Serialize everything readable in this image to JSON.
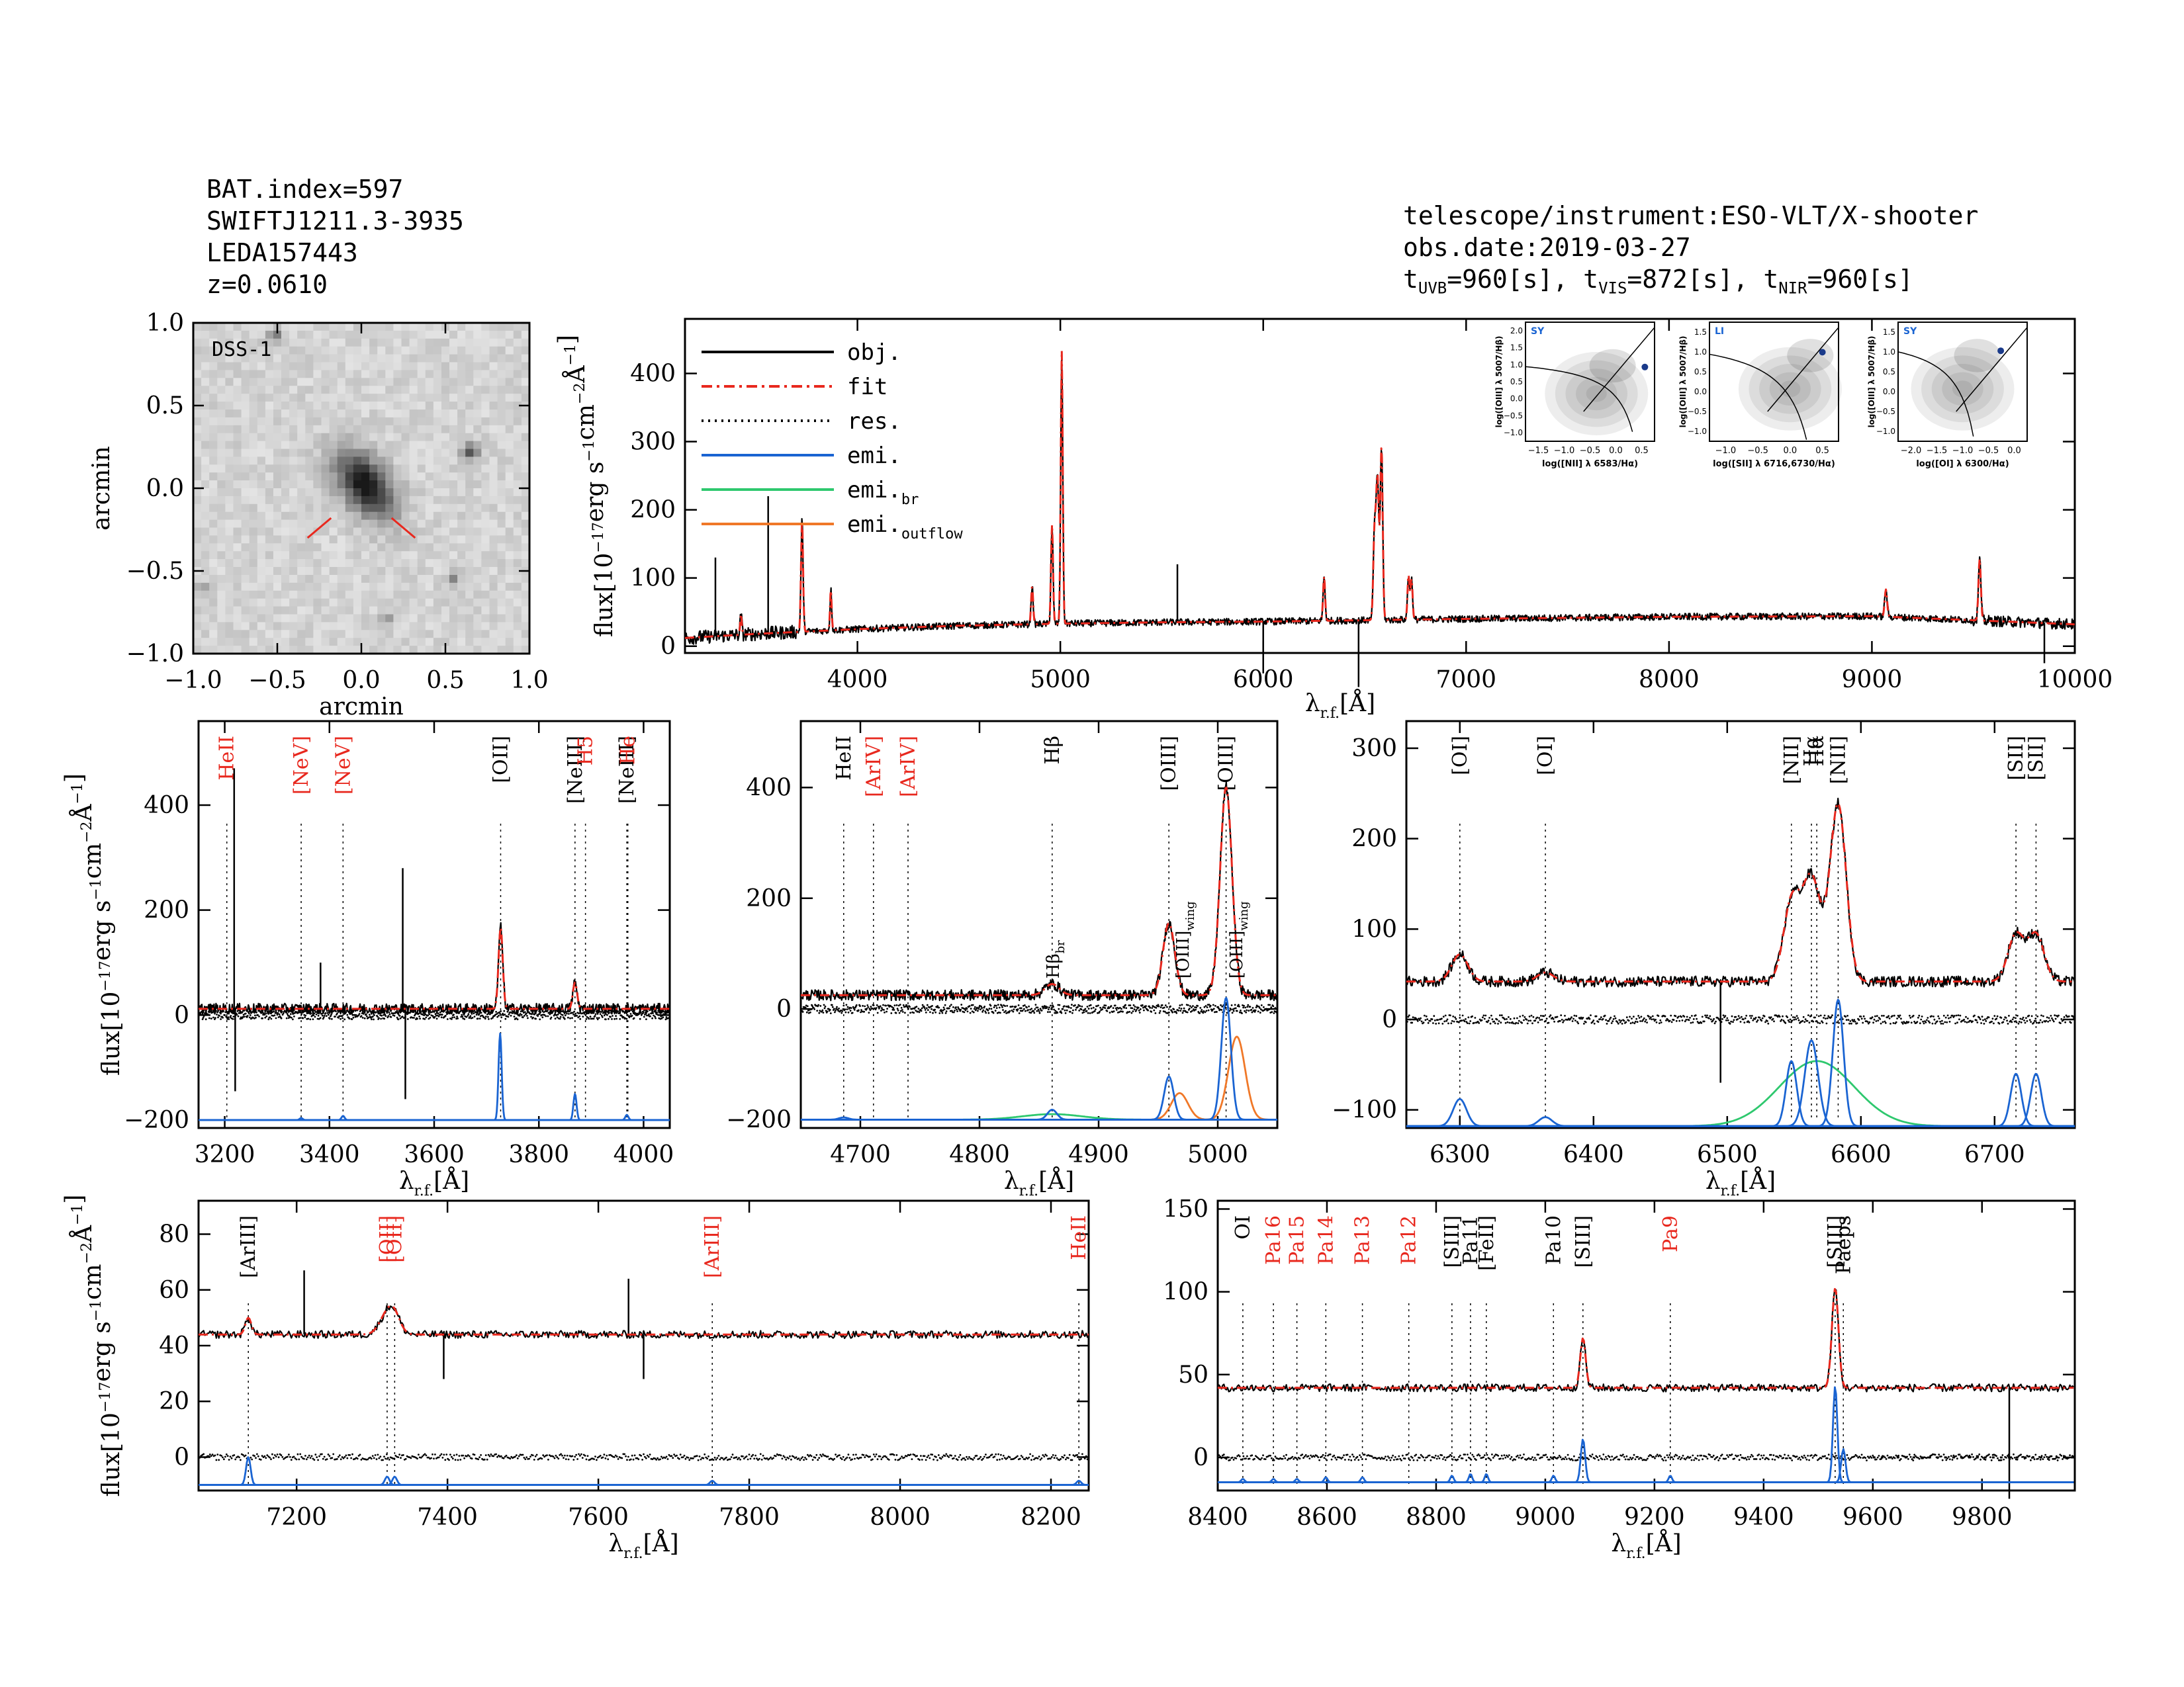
{
  "header": {
    "left": [
      "BAT.index=597",
      "SWIFTJ1211.3-3935",
      "LEDA157443",
      "z=0.0610"
    ],
    "right_telescope": "telescope/instrument:ESO-VLT/X-shooter",
    "right_date": "obs.date:2019-03-27",
    "exposure": {
      "t": "t",
      "uvb_sub": "UVB",
      "uvb_val": "=960[s],",
      "vis_sub": "VIS",
      "vis_val": "=872[s],",
      "nir_sub": "NIR",
      "nir_val": "=960[s]"
    }
  },
  "colors": {
    "obj": "#000000",
    "fit": "#e8281e",
    "res": "#000000",
    "emi": "#1a64d2",
    "emi_br": "#2ec86e",
    "emi_outflow": "#f07828",
    "label_red": "#e8281e"
  },
  "image_panel": {
    "label": "DSS-1",
    "xlabel": "arcmin",
    "ylabel": "arcmin",
    "xticks": [
      "−1.0",
      "−0.5",
      "0.0",
      "0.5",
      "1.0"
    ],
    "yticks": [
      "1.0",
      "0.5",
      "0.0",
      "−0.5",
      "−1.0"
    ]
  },
  "axis_text": {
    "flux_label": "flux[10",
    "flux_exp": "−17",
    "flux_rest": "erg s",
    "flux_exp2": "−1",
    "flux_rest2": "cm",
    "flux_exp3": "−2",
    "flux_rest3": "Å",
    "flux_exp4": "−1",
    "flux_close": "]",
    "lambda": "λ",
    "lambda_sub": "r.f.",
    "lambda_unit": "[Å]",
    "lambda_top": "λ",
    "lambda_top_unit": "[Å]"
  },
  "legend": [
    {
      "label": "obj.",
      "sub": ""
    },
    {
      "label": "fit",
      "sub": ""
    },
    {
      "label": "res.",
      "sub": ""
    },
    {
      "label": "emi.",
      "sub": ""
    },
    {
      "label": "emi.",
      "sub": "br"
    },
    {
      "label": "emi.",
      "sub": "outflow"
    }
  ],
  "bpt": [
    {
      "tag": "SY",
      "xlabel": "log([NII] λ 6583/Hα)",
      "ylabel": "log([OIII] λ 5007/Hβ)",
      "xticks": [
        "−1.5",
        "−1.0",
        "−0.5",
        "0.0",
        "0.5"
      ],
      "xlim": [
        -1.5,
        0.5
      ],
      "ylim": [
        -1.0,
        2.0
      ],
      "yticks": [
        "2.0",
        "1.5",
        "1.0",
        "0.5",
        "0.0",
        "−0.5",
        "−1.0"
      ],
      "point": [
        0.35,
        0.87
      ]
    },
    {
      "tag": "LI",
      "xlabel": "log([SII] λ 6716,6730/Hα)",
      "ylabel": "log([OIII] λ 5007/Hβ)",
      "xticks": [
        "−1.0",
        "−0.5",
        "0.0",
        "0.5"
      ],
      "xlim": [
        -1.2,
        0.4
      ],
      "ylim": [
        -1.0,
        1.5
      ],
      "yticks": [
        "1.5",
        "1.0",
        "0.5",
        "0.0",
        "−0.5",
        "−1.0"
      ],
      "point": [
        0.2,
        0.87
      ]
    },
    {
      "tag": "SY",
      "xlabel": "log([OI] λ 6300/Hα)",
      "ylabel": "log([OIII] λ 5007/Hβ)",
      "xticks": [
        "−2.0",
        "−1.5",
        "−1.0",
        "−0.5",
        "0.0"
      ],
      "xlim": [
        -2.2,
        0.0
      ],
      "ylim": [
        -1.0,
        1.5
      ],
      "yticks": [
        "1.5",
        "1.0",
        "0.5",
        "0.0",
        "−0.5",
        "−1.0"
      ],
      "point": [
        -0.45,
        0.9
      ]
    }
  ],
  "chart_data": [
    {
      "id": "overview",
      "type": "line",
      "xlim": [
        3150,
        10000
      ],
      "ylim": [
        -10,
        480
      ],
      "xticks": [
        4000,
        5000,
        6000,
        7000,
        8000,
        9000,
        10000
      ],
      "yticks": [
        0,
        100,
        200,
        300,
        400
      ],
      "continuum": [
        [
          3150,
          12
        ],
        [
          3500,
          18
        ],
        [
          4000,
          25
        ],
        [
          4500,
          30
        ],
        [
          5000,
          33
        ],
        [
          5500,
          35
        ],
        [
          6000,
          36
        ],
        [
          6500,
          38
        ],
        [
          7000,
          40
        ],
        [
          8000,
          43
        ],
        [
          9000,
          44
        ],
        [
          10000,
          32
        ]
      ],
      "lines": [
        [
          3426,
          30,
          4
        ],
        [
          3727,
          165,
          5
        ],
        [
          3869,
          60,
          4
        ],
        [
          4861,
          55,
          5
        ],
        [
          4959,
          145,
          5
        ],
        [
          5007,
          400,
          5
        ],
        [
          6300,
          65,
          5
        ],
        [
          6548,
          120,
          6
        ],
        [
          6563,
          210,
          7
        ],
        [
          6583,
          250,
          6
        ],
        [
          6716,
          65,
          5
        ],
        [
          6731,
          60,
          5
        ],
        [
          9069,
          40,
          6
        ],
        [
          9531,
          90,
          6
        ]
      ],
      "spikes": [
        [
          3300,
          130
        ],
        [
          3560,
          220
        ],
        [
          5577,
          120
        ],
        [
          6000,
          -40
        ],
        [
          6470,
          -60
        ],
        [
          9850,
          -25
        ]
      ]
    },
    {
      "id": "zoom1",
      "type": "line",
      "xlim": [
        3150,
        4050
      ],
      "ylim": [
        -215,
        560
      ],
      "xticks": [
        3200,
        3400,
        3600,
        3800,
        4000
      ],
      "yticks": [
        -200,
        0,
        200,
        400
      ],
      "continuum_level": 12,
      "residual_level": 0,
      "emi_base": -200,
      "fit_lines": [
        [
          3727,
          155,
          4
        ],
        [
          3869,
          50,
          4
        ]
      ],
      "emi": [
        {
          "x": 3726,
          "a": 165,
          "s": 3
        },
        {
          "x": 3869,
          "a": 50,
          "s": 3
        },
        {
          "x": 3346,
          "a": 4,
          "s": 3
        },
        {
          "x": 3426,
          "a": 8,
          "s": 3
        },
        {
          "x": 3968,
          "a": 10,
          "s": 3
        }
      ],
      "spikes": [
        [
          3218,
          470
        ],
        [
          3220,
          -145
        ],
        [
          3383,
          100
        ],
        [
          3540,
          280
        ],
        [
          3545,
          -160
        ]
      ],
      "markers": [
        {
          "x": 3204,
          "label": "HeII",
          "red": true
        },
        {
          "x": 3346,
          "label": "[NeV]",
          "red": true
        },
        {
          "x": 3426,
          "label": "[NeV]",
          "red": true
        },
        {
          "x": 3727,
          "label": "[OII]",
          "red": false
        },
        {
          "x": 3869,
          "label": "[NeIII]",
          "red": false
        },
        {
          "x": 3889,
          "label": "H5",
          "red": true
        },
        {
          "x": 3968,
          "label": "[NeIII]",
          "red": false
        },
        {
          "x": 3970,
          "label": "He",
          "red": true
        }
      ]
    },
    {
      "id": "zoom2",
      "type": "line",
      "xlim": [
        4650,
        5050
      ],
      "ylim": [
        -215,
        520
      ],
      "xticks": [
        4700,
        4800,
        4900,
        5000
      ],
      "yticks": [
        -200,
        0,
        200,
        400
      ],
      "continuum_level": 25,
      "residual_level": 0,
      "emi_base": -200,
      "fit_lines": [
        [
          4861,
          20,
          6
        ],
        [
          4959,
          130,
          5
        ],
        [
          5007,
          375,
          5
        ]
      ],
      "emi": [
        {
          "x": 4861,
          "a": 18,
          "s": 4
        },
        {
          "x": 4959,
          "a": 78,
          "s": 4
        },
        {
          "x": 5007,
          "a": 220,
          "s": 4
        },
        {
          "x": 4686,
          "a": 4,
          "s": 4
        }
      ],
      "emi_br": [
        {
          "x": 4861,
          "a": 10,
          "s": 25
        }
      ],
      "emi_outflow": [
        {
          "x": 4968,
          "a": 48,
          "s": 7
        },
        {
          "x": 5016,
          "a": 150,
          "s": 7
        }
      ],
      "markers": [
        {
          "x": 4686,
          "label": "HeII",
          "red": false
        },
        {
          "x": 4711,
          "label": "[ArIV]",
          "red": true
        },
        {
          "x": 4740,
          "label": "[ArIV]",
          "red": true
        },
        {
          "x": 4861,
          "label": "Hβ",
          "red": false
        },
        {
          "x": 4959,
          "label": "[OIII]",
          "red": false
        },
        {
          "x": 5007,
          "label": "[OIII]",
          "red": false
        }
      ],
      "inline_labels": [
        {
          "x": 4861,
          "label": "Hβ",
          "sub": "br"
        },
        {
          "x": 4970,
          "label": "[OIII]",
          "sub": "wing"
        },
        {
          "x": 5015,
          "label": "[OIII]",
          "sub": "wing"
        }
      ]
    },
    {
      "id": "zoom3",
      "type": "line",
      "xlim": [
        6260,
        6760
      ],
      "ylim": [
        -120,
        330
      ],
      "xticks": [
        6300,
        6400,
        6500,
        6600,
        6700
      ],
      "yticks": [
        -100,
        0,
        100,
        200,
        300
      ],
      "continuum_level": 42,
      "residual_level": 0,
      "emi_base": -118,
      "fit_lines": [
        [
          6300,
          30,
          6
        ],
        [
          6364,
          10,
          6
        ],
        [
          6548,
          85,
          6
        ],
        [
          6563,
          115,
          7
        ],
        [
          6583,
          195,
          6
        ],
        [
          6716,
          52,
          6
        ],
        [
          6731,
          52,
          6
        ]
      ],
      "emi": [
        {
          "x": 6300,
          "a": 30,
          "s": 5
        },
        {
          "x": 6364,
          "a": 10,
          "s": 5
        },
        {
          "x": 6548,
          "a": 72,
          "s": 4
        },
        {
          "x": 6563,
          "a": 95,
          "s": 5
        },
        {
          "x": 6583,
          "a": 140,
          "s": 4
        },
        {
          "x": 6716,
          "a": 58,
          "s": 4
        },
        {
          "x": 6731,
          "a": 58,
          "s": 4
        }
      ],
      "emi_br": [
        {
          "x": 6567,
          "a": 72,
          "s": 28
        }
      ],
      "spikes": [
        [
          6495,
          -70
        ]
      ],
      "markers": [
        {
          "x": 6300,
          "label": "[OI]",
          "red": false
        },
        {
          "x": 6364,
          "label": "[OI]",
          "red": false
        },
        {
          "x": 6548,
          "label": "[NII]",
          "red": false
        },
        {
          "x": 6563,
          "label": "Hα",
          "red": false
        },
        {
          "x": 6567,
          "label": "Hα",
          "red": false
        },
        {
          "x": 6583,
          "label": "[NII]",
          "red": false
        },
        {
          "x": 6716,
          "label": "[SII]",
          "red": false
        },
        {
          "x": 6731,
          "label": "[SII]",
          "red": false
        }
      ]
    },
    {
      "id": "zoom4",
      "type": "line",
      "xlim": [
        7070,
        8250
      ],
      "ylim": [
        -12,
        92
      ],
      "xticks": [
        7200,
        7400,
        7600,
        7800,
        8000,
        8200
      ],
      "yticks": [
        0,
        20,
        40,
        60,
        80
      ],
      "continuum_level": 44,
      "residual_level": 0,
      "emi_base": -10,
      "fit_lines": [
        [
          7136,
          6,
          4
        ],
        [
          7320,
          7,
          10
        ],
        [
          7330,
          5,
          8
        ]
      ],
      "emi": [
        {
          "x": 7136,
          "a": 10,
          "s": 3
        },
        {
          "x": 7320,
          "a": 3,
          "s": 3
        },
        {
          "x": 7330,
          "a": 3,
          "s": 3
        },
        {
          "x": 7751,
          "a": 1.5,
          "s": 3
        },
        {
          "x": 8237,
          "a": 1.5,
          "s": 3
        }
      ],
      "spikes": [
        [
          7210,
          67
        ],
        [
          7640,
          64
        ],
        [
          7395,
          28
        ],
        [
          7660,
          28
        ]
      ],
      "markers": [
        {
          "x": 7136,
          "label": "[ArIII]",
          "red": false
        },
        {
          "x": 7320,
          "label": "[OII]",
          "red": true
        },
        {
          "x": 7330,
          "label": "[OII]",
          "red": true
        },
        {
          "x": 7751,
          "label": "[ArIII]",
          "red": true
        },
        {
          "x": 8237,
          "label": "HeII",
          "red": true
        }
      ]
    },
    {
      "id": "zoom5",
      "type": "line",
      "xlim": [
        8400,
        9970
      ],
      "ylim": [
        -20,
        155
      ],
      "xticks": [
        8400,
        8600,
        8800,
        9000,
        9200,
        9400,
        9600,
        9800
      ],
      "yticks": [
        0,
        50,
        100,
        150
      ],
      "continuum_level": 42,
      "residual_level": 0,
      "emi_base": -15,
      "fit_lines": [
        [
          9069,
          30,
          5
        ],
        [
          9531,
          60,
          6
        ]
      ],
      "emi": [
        {
          "x": 9069,
          "a": 26,
          "s": 4
        },
        {
          "x": 9531,
          "a": 58,
          "s": 4
        },
        {
          "x": 9546,
          "a": 20,
          "s": 4
        },
        {
          "x": 8446,
          "a": 2,
          "s": 3
        },
        {
          "x": 8502,
          "a": 2,
          "s": 3
        },
        {
          "x": 8545,
          "a": 2,
          "s": 3
        },
        {
          "x": 8598,
          "a": 3,
          "s": 3
        },
        {
          "x": 8665,
          "a": 3,
          "s": 3
        },
        {
          "x": 8829,
          "a": 4,
          "s": 3
        },
        {
          "x": 8863,
          "a": 5,
          "s": 3
        },
        {
          "x": 8892,
          "a": 5,
          "s": 3
        },
        {
          "x": 9015,
          "a": 4,
          "s": 3
        },
        {
          "x": 9229,
          "a": 4,
          "s": 3
        }
      ],
      "spikes": [
        [
          9850,
          -25
        ]
      ],
      "markers": [
        {
          "x": 8446,
          "label": "OI",
          "red": false
        },
        {
          "x": 8502,
          "label": "Pa16",
          "red": true
        },
        {
          "x": 8545,
          "label": "Pa15",
          "red": true
        },
        {
          "x": 8598,
          "label": "Pa14",
          "red": true
        },
        {
          "x": 8665,
          "label": "Pa13",
          "red": true
        },
        {
          "x": 8750,
          "label": "Pa12",
          "red": true
        },
        {
          "x": 8829,
          "label": "[SIII]",
          "red": false
        },
        {
          "x": 8863,
          "label": "Pa11",
          "red": false
        },
        {
          "x": 8892,
          "label": "[FeII]",
          "red": false
        },
        {
          "x": 9015,
          "label": "Pa10",
          "red": false
        },
        {
          "x": 9069,
          "label": "[SIII]",
          "red": false
        },
        {
          "x": 9229,
          "label": "Pa9",
          "red": true
        },
        {
          "x": 9531,
          "label": "[SIII]",
          "red": false
        },
        {
          "x": 9546,
          "label": "Paeps",
          "red": false
        }
      ]
    }
  ]
}
